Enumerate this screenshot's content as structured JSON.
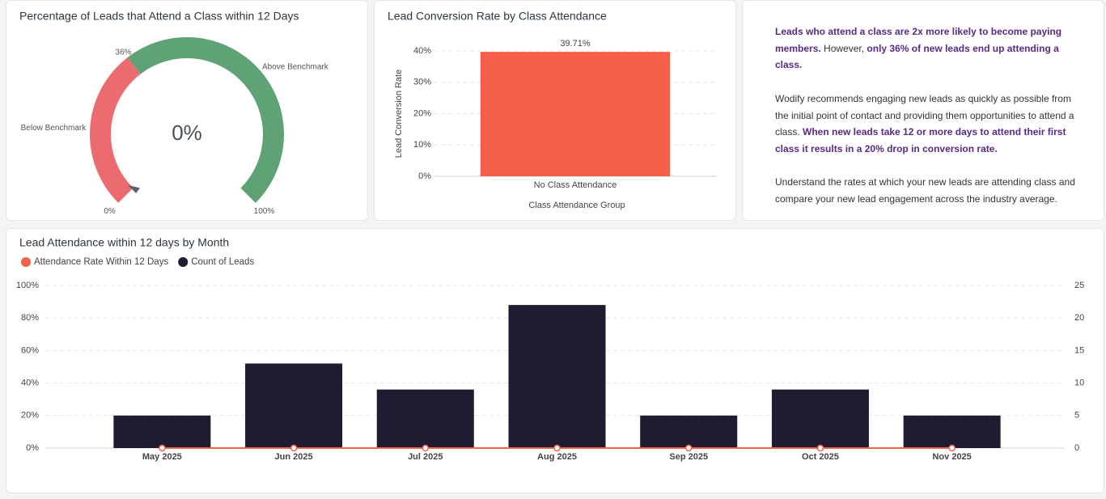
{
  "chart_data": [
    {
      "type": "gauge",
      "title": "Percentage of Leads that Attend a Class within 12 Days",
      "values": [
        0
      ],
      "value_labels": [
        "0%"
      ],
      "ylim": [
        0,
        100
      ],
      "yticks": [
        {
          "value": 0,
          "label": "0%"
        },
        {
          "value": 36,
          "label": "36%"
        },
        {
          "value": 100,
          "label": "100%"
        }
      ],
      "bands": [
        {
          "name": "Below Benchmark",
          "color": "#ec6b6e",
          "range": [
            0,
            36
          ]
        },
        {
          "name": "Above Benchmark",
          "color": "#5fa275",
          "range": [
            36,
            100
          ]
        }
      ],
      "pointer_color": "#5b5f6b"
    },
    {
      "type": "bar",
      "title": "Lead Conversion Rate by Class Attendance",
      "categories": [
        "No Class Attendance"
      ],
      "values": [
        39.71
      ],
      "value_labels": [
        "39.71%"
      ],
      "color": "#f4604a",
      "xlabel": "Class Attendance Group",
      "ylabel": "Lead Conversion Rate",
      "ylim": [
        0,
        40
      ],
      "yticks": [
        {
          "value": 0,
          "label": "0%"
        },
        {
          "value": 10,
          "label": "10%"
        },
        {
          "value": 20,
          "label": "20%"
        },
        {
          "value": 30,
          "label": "30%"
        },
        {
          "value": 40,
          "label": "40%"
        }
      ],
      "grid": true
    },
    {
      "type": "combo",
      "title": "Lead Attendance within 12 days by Month",
      "categories": [
        "May 2025",
        "Jun 2025",
        "Jul 2025",
        "Aug 2025",
        "Sep 2025",
        "Oct 2025",
        "Nov 2025"
      ],
      "series": [
        {
          "name": "Attendance Rate Within 12 Days",
          "color": "#f4604a",
          "kind": "line",
          "values": [
            0,
            0,
            0,
            0,
            0,
            0,
            0
          ]
        },
        {
          "name": "Count of Leads",
          "color": "#1f1b30",
          "kind": "bar",
          "axis": "y2",
          "values": [
            5,
            13,
            9,
            22,
            5,
            9,
            5
          ]
        }
      ],
      "ylim": [
        0,
        100
      ],
      "yticks": [
        {
          "value": 0,
          "label": "0%"
        },
        {
          "value": 20,
          "label": "20%"
        },
        {
          "value": 40,
          "label": "40%"
        },
        {
          "value": 60,
          "label": "60%"
        },
        {
          "value": 80,
          "label": "80%"
        },
        {
          "value": 100,
          "label": "100%"
        }
      ],
      "y2lim": [
        0,
        25
      ],
      "y2ticks": [
        0,
        5,
        10,
        15,
        20,
        25
      ],
      "grid": true
    }
  ],
  "info_panel": {
    "paragraphs": [
      [
        {
          "text": "Leads who attend a class are 2x more likely to become paying members.",
          "bold": true
        },
        {
          "text": " However, ",
          "bold": false
        },
        {
          "text": "only 36% of new leads end up attending a class.",
          "bold": true
        }
      ],
      [
        {
          "text": "Wodify recommends engaging new leads as quickly as possible from the initial point of contact and providing them opportunities to attend a class. ",
          "bold": false
        },
        {
          "text": "When new leads take 12 or more days to attend their first class it results in a 20% drop in conversion rate.",
          "bold": true
        }
      ],
      [
        {
          "text": "Understand the rates at which your new leads are attending class and compare your new lead engagement across the industry average.",
          "bold": false
        }
      ]
    ]
  }
}
